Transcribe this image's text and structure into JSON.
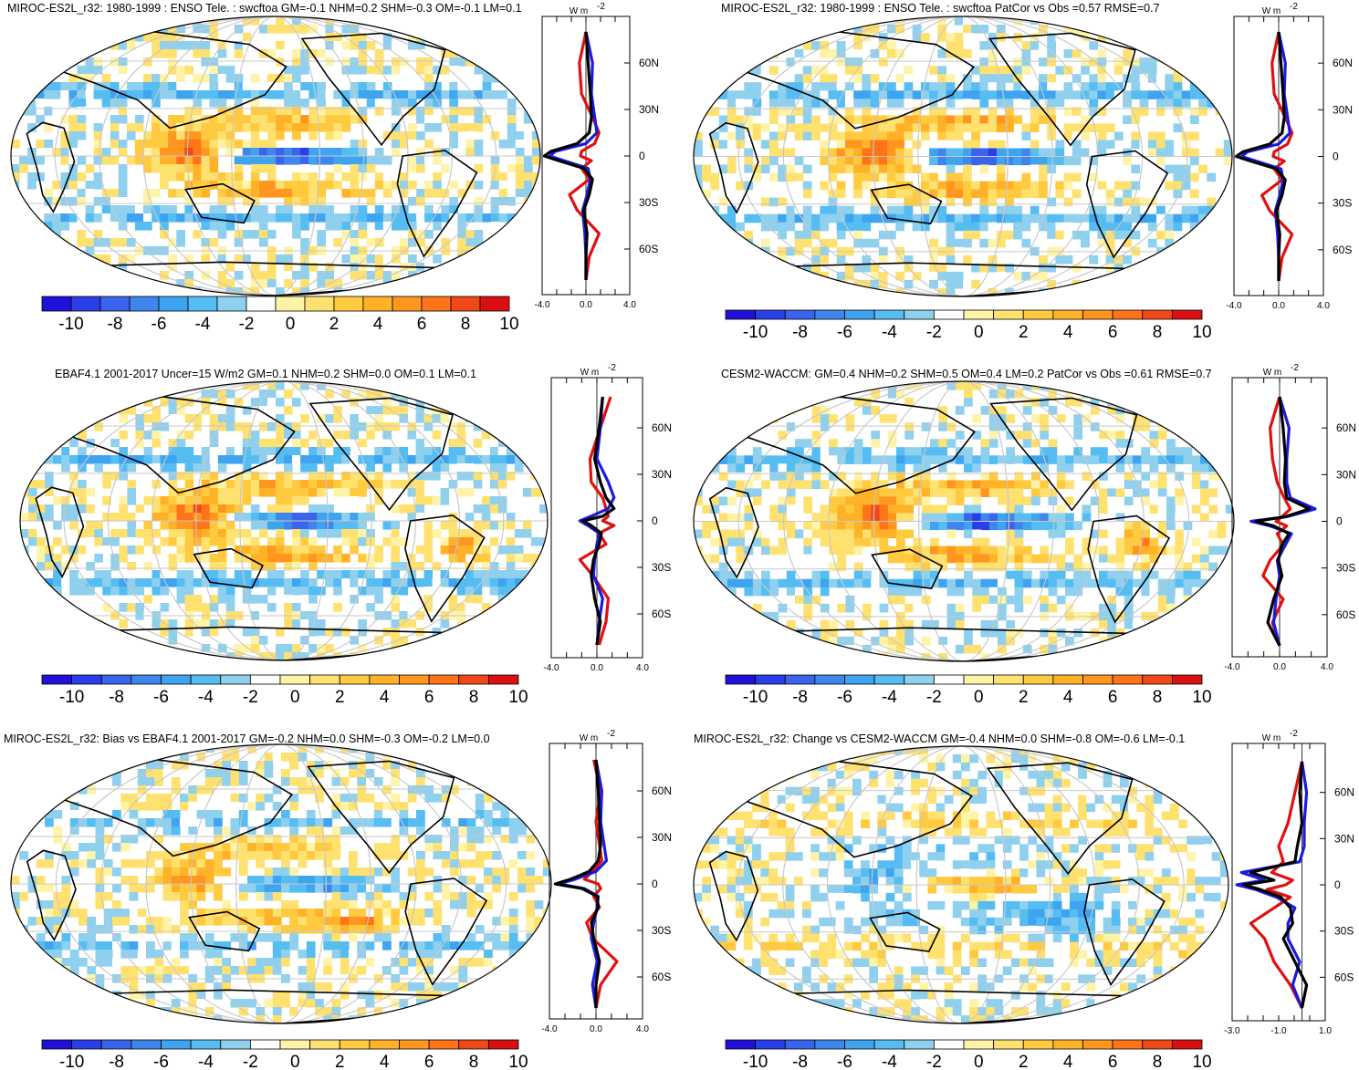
{
  "colors": {
    "palette": [
      "#2010d8",
      "#2a3ee8",
      "#3a64ec",
      "#3f86ec",
      "#3ea4f0",
      "#56bdf3",
      "#8fd0ee",
      "#ffffff",
      "#fff3a8",
      "#ffe170",
      "#ffca40",
      "#ffb228",
      "#ff9620",
      "#ff7418",
      "#f04818",
      "#d81010"
    ],
    "land": "#000000",
    "grid": "#c8c8c8",
    "model_line": "#000000",
    "obs_line": "#1a1ae0",
    "diff_line": "#e01010"
  },
  "colorbar": {
    "labels": [
      "-10",
      "-8",
      "-6",
      "-4",
      "-2",
      "0",
      "2",
      "4",
      "6",
      "8",
      "10"
    ]
  },
  "chart_data": [
    {
      "type": "heatmap",
      "title": "MIROC-ES2L_r32: 1980-1999 : ENSO Tele. : swcftoa GM=-0.1 NHM=0.2 SHM=-0.3 OM=-0.1 LM=0.1",
      "variable": "swcftoa",
      "units": "W m-2",
      "value_range": [
        -10,
        10
      ],
      "lat_ticks": [
        "60N",
        "30N",
        "0",
        "30S",
        "60S"
      ],
      "zonal_mean": {
        "xlim": [
          -4.0,
          4.0
        ],
        "xticks": [
          "-4.0",
          "0.0",
          "4.0"
        ],
        "units": "W m",
        "series": [
          {
            "name": "model",
            "lats": [
              80,
              60,
              40,
              25,
              15,
              8,
              3,
              0,
              -3,
              -8,
              -15,
              -25,
              -35,
              -50,
              -65,
              -80
            ],
            "values": [
              0,
              0.2,
              0.4,
              0.5,
              0.3,
              -0.8,
              -3.2,
              -3.8,
              -2.5,
              -0.2,
              0.6,
              0.3,
              -0.2,
              0.1,
              0,
              0
            ]
          },
          {
            "name": "obs",
            "lats": [
              80,
              60,
              40,
              25,
              15,
              8,
              3,
              0,
              -3,
              -8,
              -15,
              -25,
              -35,
              -50,
              -65,
              -80
            ],
            "values": [
              0,
              0.6,
              0.5,
              0.8,
              1,
              0,
              -2.8,
              -3.3,
              -2,
              0.2,
              0.4,
              0.1,
              -0.3,
              -0.1,
              0,
              0
            ]
          },
          {
            "name": "diff",
            "lats": [
              80,
              60,
              40,
              25,
              15,
              8,
              3,
              0,
              -3,
              -8,
              -15,
              -25,
              -35,
              -50,
              -65,
              -80
            ],
            "values": [
              0,
              -0.6,
              -0.4,
              0.6,
              1.2,
              0.8,
              -0.4,
              -0.5,
              0.5,
              -0.4,
              0.3,
              -1.5,
              -0.8,
              1.2,
              0.3,
              0
            ]
          }
        ]
      }
    },
    {
      "type": "heatmap",
      "title": "MIROC-ES2L_r32: 1980-1999 : ENSO Tele. : swcftoa PatCor vs Obs =0.57 RMSE=0.7",
      "variable": "swcftoa",
      "units": "W m-2",
      "value_range": [
        -10,
        10
      ],
      "lat_ticks": [
        "60N",
        "30N",
        "0",
        "30S",
        "60S"
      ],
      "zonal_mean": {
        "xlim": [
          -4.0,
          4.0
        ],
        "xticks": [
          "-4.0",
          "0.0",
          "4.0"
        ],
        "units": "W m",
        "series": [
          {
            "name": "model",
            "lats": [
              80,
              60,
              40,
              25,
              15,
              8,
              3,
              0,
              -3,
              -8,
              -15,
              -25,
              -35,
              -50,
              -65,
              -80
            ],
            "values": [
              0,
              0.2,
              0.4,
              0.5,
              0.3,
              -0.8,
              -3.2,
              -3.8,
              -2.5,
              -0.2,
              0.6,
              0.3,
              -0.2,
              0.1,
              0,
              0
            ]
          },
          {
            "name": "obs",
            "lats": [
              80,
              60,
              40,
              25,
              15,
              8,
              3,
              0,
              -3,
              -8,
              -15,
              -25,
              -35,
              -50,
              -65,
              -80
            ],
            "values": [
              0,
              0.6,
              0.5,
              0.8,
              1,
              0,
              -2.8,
              -3.3,
              -2,
              0.2,
              0.4,
              0.1,
              -0.3,
              -0.1,
              0,
              0
            ]
          },
          {
            "name": "diff",
            "lats": [
              80,
              60,
              40,
              25,
              15,
              8,
              3,
              0,
              -3,
              -8,
              -15,
              -25,
              -35,
              -50,
              -65,
              -80
            ],
            "values": [
              0,
              -0.6,
              -0.4,
              0.6,
              1.2,
              0.8,
              -0.4,
              -0.5,
              0.5,
              -0.4,
              0.3,
              -1.5,
              -0.8,
              1.2,
              0.3,
              0
            ]
          }
        ]
      }
    },
    {
      "type": "heatmap",
      "title": "EBAF4.1 2001-2017 Uncer=15 W/m2 GM=0.1 NHM=0.2 SHM=0.0 OM=0.1 LM=0.1",
      "variable": "swcftoa",
      "units": "W m-2",
      "value_range": [
        -10,
        10
      ],
      "lat_ticks": [
        "60N",
        "30N",
        "0",
        "30S",
        "60S"
      ],
      "zonal_mean": {
        "xlim": [
          -4.0,
          4.0
        ],
        "xticks": [
          "-4.0",
          "0.0",
          "4.0"
        ],
        "units": "W m",
        "series": [
          {
            "name": "model",
            "lats": [
              80,
              60,
              40,
              25,
              15,
              8,
              3,
              0,
              -3,
              -8,
              -15,
              -25,
              -35,
              -50,
              -65,
              -80
            ],
            "values": [
              0.5,
              0.2,
              -0.2,
              0.3,
              0.8,
              1.5,
              0.5,
              -1.2,
              -0.5,
              0.4,
              0.2,
              -0.3,
              -0.5,
              -0.2,
              0.3,
              0
            ]
          },
          {
            "name": "obs",
            "lats": [
              80,
              60,
              40,
              25,
              15,
              8,
              3,
              0,
              -3,
              -8,
              -15,
              -25,
              -35,
              -50,
              -65,
              -80
            ],
            "values": [
              0.5,
              0.3,
              0,
              1,
              1.5,
              1,
              -0.5,
              -1.5,
              -0.8,
              0.2,
              0,
              -0.2,
              -0.3,
              0.5,
              0.2,
              0
            ]
          },
          {
            "name": "diff",
            "lats": [
              80,
              60,
              40,
              25,
              15,
              8,
              3,
              0,
              -3,
              -8,
              -15,
              -25,
              -35,
              -50,
              -65,
              -80
            ],
            "values": [
              1.2,
              0.3,
              -0.6,
              -0.5,
              0.5,
              0.8,
              1,
              0.5,
              1.5,
              0.2,
              0.8,
              -1.5,
              -0.4,
              1,
              0.8,
              0.2
            ]
          }
        ]
      }
    },
    {
      "type": "heatmap",
      "title": "CESM2-WACCM: GM=0.4 NHM=0.2 SHM=0.5 OM=0.4 LM=0.2 PatCor vs Obs =0.61 RMSE=0.7",
      "variable": "swcftoa",
      "units": "W m-2",
      "value_range": [
        -10,
        10
      ],
      "lat_ticks": [
        "60N",
        "30N",
        "0",
        "30S",
        "60S"
      ],
      "zonal_mean": {
        "xlim": [
          -4.0,
          4.0
        ],
        "xticks": [
          "-4.0",
          "0.0",
          "4.0"
        ],
        "units": "W m",
        "series": [
          {
            "name": "model",
            "lats": [
              80,
              60,
              40,
              25,
              15,
              8,
              3,
              0,
              -3,
              -8,
              -15,
              -25,
              -35,
              -50,
              -65,
              -80
            ],
            "values": [
              0,
              0.3,
              0.5,
              0.4,
              0.6,
              2.5,
              0.5,
              -2,
              -0.5,
              0.8,
              0.2,
              -0.1,
              0.2,
              -0.5,
              -1,
              0
            ]
          },
          {
            "name": "obs",
            "lats": [
              80,
              60,
              40,
              25,
              15,
              8,
              3,
              0,
              -3,
              -8,
              -15,
              -25,
              -35,
              -50,
              -65,
              -80
            ],
            "values": [
              0,
              0.8,
              0.6,
              0.6,
              0.9,
              3,
              0.6,
              -2.4,
              -0.8,
              1,
              0.5,
              -0.2,
              0,
              -0.3,
              -0.5,
              0
            ]
          },
          {
            "name": "diff",
            "lats": [
              80,
              60,
              40,
              25,
              15,
              8,
              3,
              0,
              -3,
              -8,
              -15,
              -25,
              -35,
              -50,
              -65,
              -80
            ],
            "values": [
              0,
              -0.8,
              -0.6,
              -0.2,
              0.4,
              0.9,
              0.2,
              -0.3,
              0.6,
              -0.2,
              0.3,
              -0.8,
              -1.4,
              0.3,
              -0.6,
              0
            ]
          }
        ]
      }
    },
    {
      "type": "heatmap",
      "title": "MIROC-ES2L_r32: Bias vs EBAF4.1 2001-2017 GM=-0.2 NHM=0.0 SHM=-0.3 OM=-0.2 LM=0.0",
      "variable": "swcftoa",
      "units": "W m-2",
      "value_range": [
        -10,
        10
      ],
      "lat_ticks": [
        "60N",
        "30N",
        "0",
        "30S",
        "60S"
      ],
      "zonal_mean": {
        "xlim": [
          -4.0,
          4.0
        ],
        "xticks": [
          "-4.0",
          "0.0",
          "4.0"
        ],
        "units": "W m",
        "series": [
          {
            "name": "model",
            "lats": [
              80,
              60,
              40,
              25,
              15,
              8,
              3,
              0,
              -3,
              -8,
              -15,
              -25,
              -35,
              -50,
              -65,
              -80
            ],
            "values": [
              0,
              0.2,
              0.3,
              0.4,
              0.2,
              -0.6,
              -2.2,
              -3.5,
              -1.2,
              0.1,
              0.2,
              -0.4,
              -0.2,
              0.3,
              0,
              0
            ]
          },
          {
            "name": "obs",
            "lats": [
              80,
              60,
              40,
              25,
              15,
              8,
              3,
              0,
              -3,
              -8,
              -15,
              -25,
              -35,
              -50,
              -65,
              -80
            ],
            "values": [
              0,
              0.5,
              0.4,
              0.7,
              0.9,
              0,
              -1.8,
              -3.2,
              -1,
              0.2,
              0.1,
              -0.2,
              -0.4,
              0.1,
              -0.3,
              0
            ]
          },
          {
            "name": "diff",
            "lats": [
              80,
              60,
              40,
              25,
              15,
              8,
              3,
              0,
              -3,
              -8,
              -15,
              -25,
              -35,
              -50,
              -65,
              -80
            ],
            "values": [
              -0.2,
              0.4,
              0,
              0.3,
              0.5,
              -0.3,
              -1,
              0.2,
              0.4,
              -0.2,
              0.3,
              -0.8,
              -0.3,
              1.8,
              0.4,
              0
            ]
          }
        ]
      }
    },
    {
      "type": "heatmap",
      "title": "MIROC-ES2L_r32: Change vs CESM2-WACCM GM=-0.4 NHM=0.0 SHM=-0.8 OM=-0.6 LM=-0.1",
      "variable": "swcftoa",
      "units": "W m-2",
      "value_range": [
        -10,
        10
      ],
      "lat_ticks": [
        "60N",
        "30N",
        "0",
        "30S",
        "60S"
      ],
      "zonal_mean": {
        "xlim": [
          -3.0,
          1.0
        ],
        "xticks": [
          "-3.0",
          "-1.0",
          "1.0"
        ],
        "units": "W m",
        "series": [
          {
            "name": "model",
            "lats": [
              80,
              60,
              40,
              25,
              15,
              8,
              3,
              0,
              -3,
              -8,
              -15,
              -25,
              -35,
              -50,
              -65,
              -80
            ],
            "values": [
              0,
              -0.1,
              0,
              -0.2,
              -0.3,
              -2.2,
              -1.2,
              -2.5,
              -1.8,
              -0.9,
              -0.5,
              -0.4,
              -0.8,
              -0.3,
              0.2,
              0
            ]
          },
          {
            "name": "obs",
            "lats": [
              80,
              60,
              40,
              25,
              15,
              8,
              3,
              0,
              -3,
              -8,
              -15,
              -25,
              -35,
              -50,
              -65,
              -80
            ],
            "values": [
              0,
              0.2,
              0.1,
              0.1,
              -0.1,
              -2.6,
              -1.6,
              -2.8,
              -2,
              -1.1,
              -0.3,
              -0.6,
              -0.6,
              -0.1,
              -0.4,
              0
            ]
          },
          {
            "name": "diff",
            "lats": [
              80,
              60,
              40,
              25,
              15,
              8,
              3,
              0,
              -3,
              -8,
              -15,
              -25,
              -35,
              -50,
              -65,
              -80
            ],
            "values": [
              0,
              -0.3,
              -0.6,
              -1,
              -0.8,
              -1.3,
              -0.4,
              -0.7,
              -1.5,
              -0.5,
              -1.2,
              -2.2,
              -1.6,
              -1.2,
              -0.5,
              0
            ]
          }
        ]
      }
    }
  ]
}
